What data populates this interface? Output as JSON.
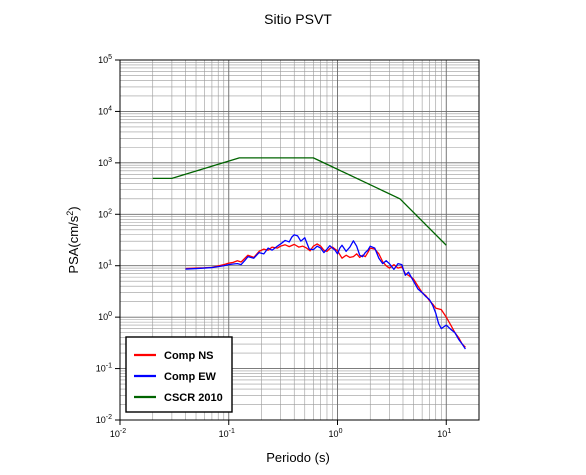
{
  "chart_data": {
    "type": "line",
    "title": "Sitio PSVT",
    "xlabel": "Periodo (s)",
    "ylabel": {
      "base": "PSA(cm/s",
      "sup": "2",
      "tail": ")"
    },
    "xscale": "log",
    "yscale": "log",
    "xlim": [
      0.01,
      20
    ],
    "ylim": [
      0.01,
      100000
    ],
    "grid": true,
    "legend_position": "bottom-left",
    "x_ticks": [
      {
        "value": 0.01,
        "base": "10",
        "exp": "-2"
      },
      {
        "value": 0.1,
        "base": "10",
        "exp": "-1"
      },
      {
        "value": 1,
        "base": "10",
        "exp": "0"
      },
      {
        "value": 10,
        "base": "10",
        "exp": "1"
      }
    ],
    "y_ticks": [
      {
        "value": 0.01,
        "base": "10",
        "exp": "-2"
      },
      {
        "value": 0.1,
        "base": "10",
        "exp": "-1"
      },
      {
        "value": 1,
        "base": "10",
        "exp": "0"
      },
      {
        "value": 10,
        "base": "10",
        "exp": "1"
      },
      {
        "value": 100,
        "base": "10",
        "exp": "2"
      },
      {
        "value": 1000,
        "base": "10",
        "exp": "3"
      },
      {
        "value": 10000,
        "base": "10",
        "exp": "4"
      },
      {
        "value": 100000,
        "base": "10",
        "exp": "5"
      }
    ],
    "series": [
      {
        "name": "Comp NS",
        "color": "#ff0000",
        "points": [
          [
            0.04,
            8.8
          ],
          [
            0.05,
            9.0
          ],
          [
            0.06,
            9.1
          ],
          [
            0.07,
            9.3
          ],
          [
            0.08,
            9.9
          ],
          [
            0.09,
            10.5
          ],
          [
            0.1,
            11.2
          ],
          [
            0.11,
            11.6
          ],
          [
            0.12,
            12.5
          ],
          [
            0.13,
            11.8
          ],
          [
            0.14,
            13.8
          ],
          [
            0.15,
            16.0
          ],
          [
            0.17,
            14.5
          ],
          [
            0.19,
            19.0
          ],
          [
            0.21,
            21.0
          ],
          [
            0.23,
            20.0
          ],
          [
            0.25,
            23.0
          ],
          [
            0.28,
            22.0
          ],
          [
            0.3,
            24.0
          ],
          [
            0.33,
            25.5
          ],
          [
            0.36,
            23.5
          ],
          [
            0.4,
            26.0
          ],
          [
            0.44,
            23.0
          ],
          [
            0.48,
            24.0
          ],
          [
            0.52,
            22.0
          ],
          [
            0.56,
            19.5
          ],
          [
            0.6,
            24.0
          ],
          [
            0.65,
            26.5
          ],
          [
            0.7,
            24.0
          ],
          [
            0.75,
            20.0
          ],
          [
            0.8,
            19.0
          ],
          [
            0.85,
            21.5
          ],
          [
            0.9,
            23.0
          ],
          [
            0.95,
            21.0
          ],
          [
            1.0,
            19.5
          ],
          [
            1.1,
            14.0
          ],
          [
            1.2,
            16.0
          ],
          [
            1.3,
            14.5
          ],
          [
            1.4,
            15.0
          ],
          [
            1.5,
            17.0
          ],
          [
            1.6,
            14.5
          ],
          [
            1.7,
            16.0
          ],
          [
            1.8,
            15.0
          ],
          [
            1.9,
            18.0
          ],
          [
            2.0,
            22.0
          ],
          [
            2.2,
            21.0
          ],
          [
            2.4,
            17.0
          ],
          [
            2.6,
            12.0
          ],
          [
            2.8,
            10.0
          ],
          [
            3.0,
            9.0
          ],
          [
            3.3,
            10.5
          ],
          [
            3.6,
            9.0
          ],
          [
            3.9,
            9.5
          ],
          [
            4.2,
            7.0
          ],
          [
            4.5,
            6.5
          ],
          [
            5.0,
            5.5
          ],
          [
            5.5,
            4.0
          ],
          [
            6.0,
            3.0
          ],
          [
            6.5,
            2.6
          ],
          [
            7.0,
            2.1
          ],
          [
            7.5,
            1.8
          ],
          [
            8.0,
            1.5
          ],
          [
            9.0,
            1.4
          ],
          [
            10.0,
            1.0
          ],
          [
            11.0,
            0.7
          ],
          [
            12.0,
            0.5
          ],
          [
            13.0,
            0.4
          ],
          [
            14.0,
            0.3
          ],
          [
            15.0,
            0.26
          ]
        ]
      },
      {
        "name": "Comp EW",
        "color": "#0000ff",
        "points": [
          [
            0.04,
            8.6
          ],
          [
            0.05,
            8.8
          ],
          [
            0.06,
            9.0
          ],
          [
            0.07,
            9.2
          ],
          [
            0.08,
            9.6
          ],
          [
            0.09,
            10.0
          ],
          [
            0.1,
            10.5
          ],
          [
            0.11,
            10.8
          ],
          [
            0.12,
            11.0
          ],
          [
            0.13,
            10.5
          ],
          [
            0.14,
            12.5
          ],
          [
            0.15,
            15.0
          ],
          [
            0.17,
            14.0
          ],
          [
            0.19,
            18.0
          ],
          [
            0.21,
            17.0
          ],
          [
            0.23,
            22.0
          ],
          [
            0.25,
            20.0
          ],
          [
            0.28,
            24.0
          ],
          [
            0.3,
            26.5
          ],
          [
            0.33,
            31.0
          ],
          [
            0.36,
            29.0
          ],
          [
            0.38,
            36.0
          ],
          [
            0.4,
            40.0
          ],
          [
            0.43,
            38.0
          ],
          [
            0.46,
            30.0
          ],
          [
            0.5,
            35.0
          ],
          [
            0.55,
            21.0
          ],
          [
            0.6,
            20.5
          ],
          [
            0.65,
            24.0
          ],
          [
            0.7,
            22.0
          ],
          [
            0.75,
            18.0
          ],
          [
            0.8,
            21.0
          ],
          [
            0.85,
            24.5
          ],
          [
            0.9,
            22.0
          ],
          [
            0.95,
            20.0
          ],
          [
            1.0,
            17.0
          ],
          [
            1.05,
            22.0
          ],
          [
            1.1,
            25.0
          ],
          [
            1.2,
            19.0
          ],
          [
            1.3,
            23.0
          ],
          [
            1.4,
            30.5
          ],
          [
            1.5,
            24.0
          ],
          [
            1.6,
            16.0
          ],
          [
            1.7,
            15.0
          ],
          [
            1.8,
            18.0
          ],
          [
            1.9,
            20.0
          ],
          [
            2.0,
            24.0
          ],
          [
            2.2,
            22.0
          ],
          [
            2.4,
            14.0
          ],
          [
            2.6,
            11.0
          ],
          [
            2.8,
            12.5
          ],
          [
            3.0,
            11.0
          ],
          [
            3.3,
            8.5
          ],
          [
            3.6,
            11.0
          ],
          [
            3.9,
            10.5
          ],
          [
            4.2,
            6.5
          ],
          [
            4.5,
            7.5
          ],
          [
            5.0,
            5.0
          ],
          [
            5.5,
            3.5
          ],
          [
            6.0,
            3.0
          ],
          [
            6.5,
            2.5
          ],
          [
            7.0,
            2.2
          ],
          [
            7.5,
            1.7
          ],
          [
            8.0,
            1.2
          ],
          [
            8.5,
            0.75
          ],
          [
            9.0,
            0.6
          ],
          [
            10.0,
            0.7
          ],
          [
            11.0,
            0.58
          ],
          [
            12.0,
            0.5
          ],
          [
            13.0,
            0.37
          ],
          [
            14.0,
            0.3
          ],
          [
            15.0,
            0.24
          ]
        ]
      },
      {
        "name": "CSCR 2010",
        "color": "#006400",
        "points": [
          [
            0.02,
            500
          ],
          [
            0.03,
            500
          ],
          [
            0.125,
            1250
          ],
          [
            0.6,
            1250
          ],
          [
            3.75,
            200
          ],
          [
            10.0,
            25
          ]
        ]
      }
    ]
  }
}
